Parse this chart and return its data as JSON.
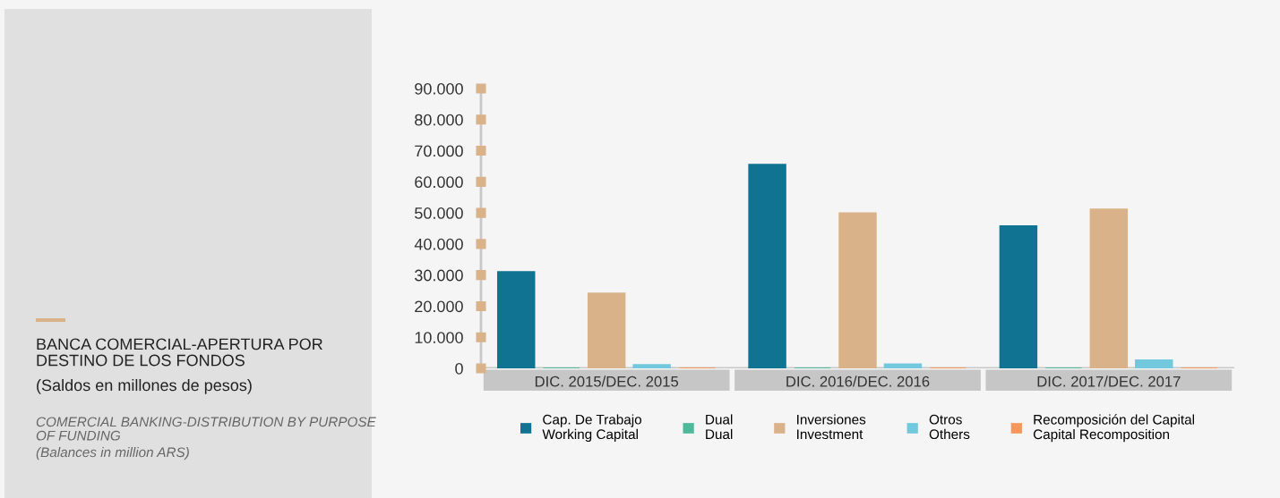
{
  "chart_data": {
    "type": "bar",
    "title": "BANCA COMERCIAL-APERTURA POR DESTINO DE LOS FONDOS",
    "subtitle": "(Saldos en millones de pesos)",
    "annotations": [
      "COMERCIAL BANKING-DISTRIBUTION BY PURPOSE OF FUNDING",
      "(Balances in million ARS)"
    ],
    "categories": [
      "DIC. 2015/DEC. 2015",
      "DIC. 2016/DEC. 2016",
      "DIC. 2017/DEC. 2017"
    ],
    "series": [
      {
        "name": "Cap. De Trabajo\nWorking Capital",
        "color": "#0f7391",
        "values": [
          31000,
          65500,
          45700
        ]
      },
      {
        "name": "Dual\nDual",
        "color": "#4db89a",
        "values": [
          0,
          0,
          0
        ]
      },
      {
        "name": "Inversiones\nInvestment",
        "color": "#d9b289",
        "values": [
          24100,
          49900,
          51100
        ]
      },
      {
        "name": "Otros\nOthers",
        "color": "#72c8dc",
        "values": [
          1100,
          1300,
          2600
        ]
      },
      {
        "name": "Recomposición del Capital\nCapital Recomposition",
        "color": "#f5965a",
        "values": [
          0,
          0,
          0
        ]
      }
    ],
    "ylim": [
      0,
      90000
    ],
    "yticks": [
      {
        "value": 0,
        "label": "0"
      },
      {
        "value": 10000,
        "label": "10.000"
      },
      {
        "value": 20000,
        "label": "20.000"
      },
      {
        "value": 30000,
        "label": "30.000"
      },
      {
        "value": 40000,
        "label": "40.000"
      },
      {
        "value": 50000,
        "label": "50.000"
      },
      {
        "value": 60000,
        "label": "60.000"
      },
      {
        "value": 70000,
        "label": "70.000"
      },
      {
        "value": 80000,
        "label": "80.000"
      },
      {
        "value": 90000,
        "label": "90.000"
      }
    ],
    "grid": false,
    "legend": "bottom"
  }
}
